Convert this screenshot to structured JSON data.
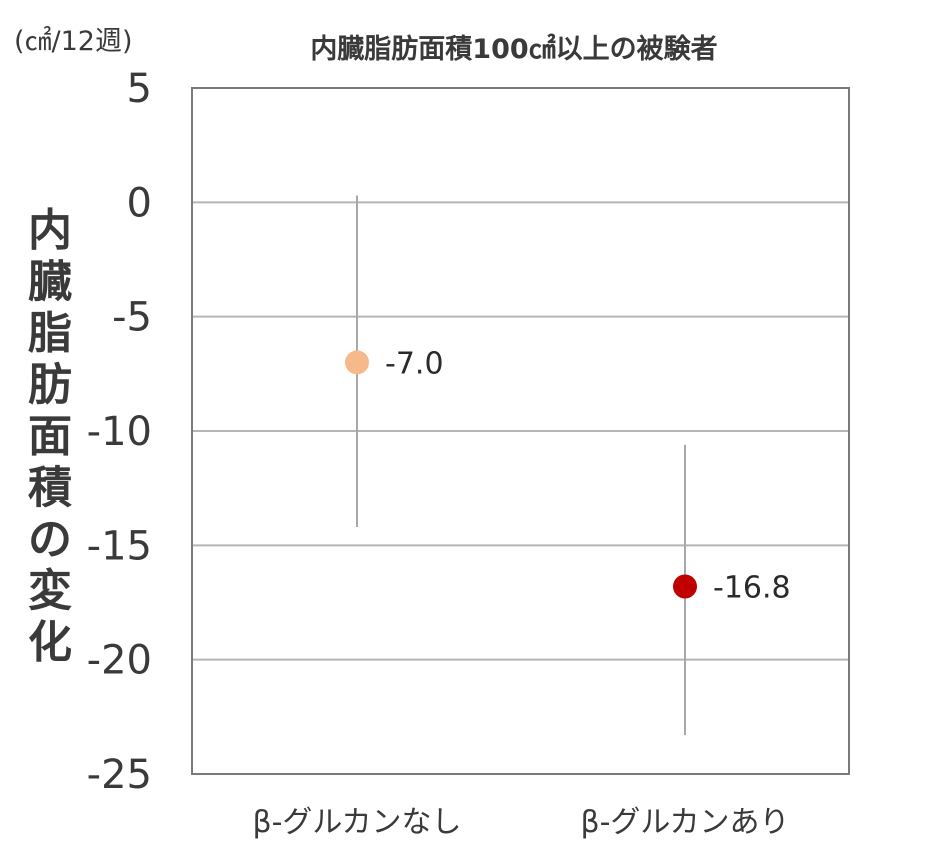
{
  "chart_data": {
    "type": "scatter",
    "title": "内臓脂肪面積100㎠以上の被験者",
    "unit_label": "(㎠/12週)",
    "ylabel": "内臓脂肪面積の変化",
    "xlabel": "",
    "categories": [
      "β-グルカンなし",
      "β-グルカンあり"
    ],
    "ylim": [
      -25,
      5
    ],
    "yticks": [
      5,
      0,
      -5,
      -10,
      -15,
      -20,
      -25
    ],
    "grid": true,
    "points": [
      {
        "category": "β-グルカンなし",
        "value": -7.0,
        "label": "-7.0",
        "error_low": -14.2,
        "error_high": 0.3,
        "color": "#F7B98A"
      },
      {
        "category": "β-グルカンあり",
        "value": -16.8,
        "label": "-16.8",
        "error_low": -23.3,
        "error_high": -10.6,
        "color": "#C00000"
      }
    ]
  }
}
